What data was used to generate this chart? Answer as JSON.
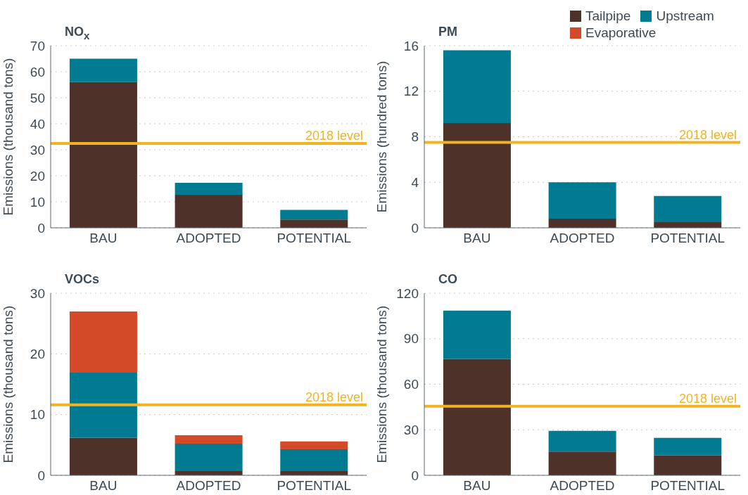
{
  "chart_data": [
    {
      "type": "bar",
      "title": "NO$_{x}$",
      "ylabel": "Emissions (thousand tons)",
      "categories": [
        "BAU",
        "ADOPTED",
        "POTENTIAL"
      ],
      "stacked": true,
      "ylim": [
        0,
        70
      ],
      "yticks": [
        0,
        10,
        20,
        30,
        40,
        50,
        60,
        70
      ],
      "grid": "y",
      "legend": false,
      "series": [
        {
          "color": "#4e3229",
          "values": [
            56,
            12.7,
            3.2
          ]
        },
        {
          "color": "#007b91",
          "values": [
            9,
            4.6,
            3.7
          ]
        }
      ],
      "ref_lines": [
        {
          "axis": "y",
          "value": 32.4,
          "label": "2018 level",
          "color": "#f0b323"
        }
      ]
    },
    {
      "type": "bar",
      "title": "PM",
      "ylabel": "Emissions (hundred tons)",
      "categories": [
        "BAU",
        "ADOPTED",
        "POTENTIAL"
      ],
      "stacked": true,
      "ylim": [
        0,
        16
      ],
      "yticks": [
        0,
        4,
        8,
        12,
        16
      ],
      "grid": "y",
      "legend": "top right",
      "series": [
        {
          "name": "Tailpipe",
          "color": "#4e3229",
          "values": [
            9.2,
            0.8,
            0.5
          ]
        },
        {
          "name": "Upstream",
          "color": "#007b91",
          "values": [
            6.4,
            3.2,
            2.3
          ]
        },
        {
          "name": "Evaporative",
          "color": "#d34a28",
          "values": [
            null,
            null,
            null
          ]
        }
      ],
      "ref_lines": [
        {
          "axis": "y",
          "value": 7.5,
          "label": "2018 level",
          "color": "#f0b323"
        }
      ]
    },
    {
      "type": "bar",
      "title": "VOCs",
      "ylabel": "Emissions (thousand tons)",
      "categories": [
        "BAU",
        "ADOPTED",
        "POTENTIAL"
      ],
      "stacked": true,
      "ylim": [
        0,
        30
      ],
      "yticks": [
        0,
        10,
        20,
        30
      ],
      "grid": "y",
      "legend": false,
      "series": [
        {
          "color": "#4e3229",
          "values": [
            6.2,
            0.7,
            0.7
          ]
        },
        {
          "color": "#007b91",
          "values": [
            10.7,
            4.5,
            3.6
          ]
        },
        {
          "color": "#d34a28",
          "values": [
            10.1,
            1.4,
            1.3
          ]
        }
      ],
      "ref_lines": [
        {
          "axis": "y",
          "value": 11.6,
          "label": "2018 level",
          "color": "#f0b323"
        }
      ]
    },
    {
      "type": "bar",
      "title": "CO",
      "ylabel": "Emissions (thousand tons)",
      "categories": [
        "BAU",
        "ADOPTED",
        "POTENTIAL"
      ],
      "stacked": true,
      "ylim": [
        0,
        120
      ],
      "yticks": [
        0,
        30,
        60,
        90,
        120
      ],
      "grid": "y",
      "legend": false,
      "series": [
        {
          "color": "#4e3229",
          "values": [
            76.7,
            15.6,
            13.1
          ]
        },
        {
          "color": "#007b91",
          "values": [
            31.8,
            13.7,
            11.6
          ]
        }
      ],
      "ref_lines": [
        {
          "axis": "y",
          "value": 45.5,
          "label": "2018 level",
          "color": "#f0b323"
        }
      ]
    }
  ]
}
